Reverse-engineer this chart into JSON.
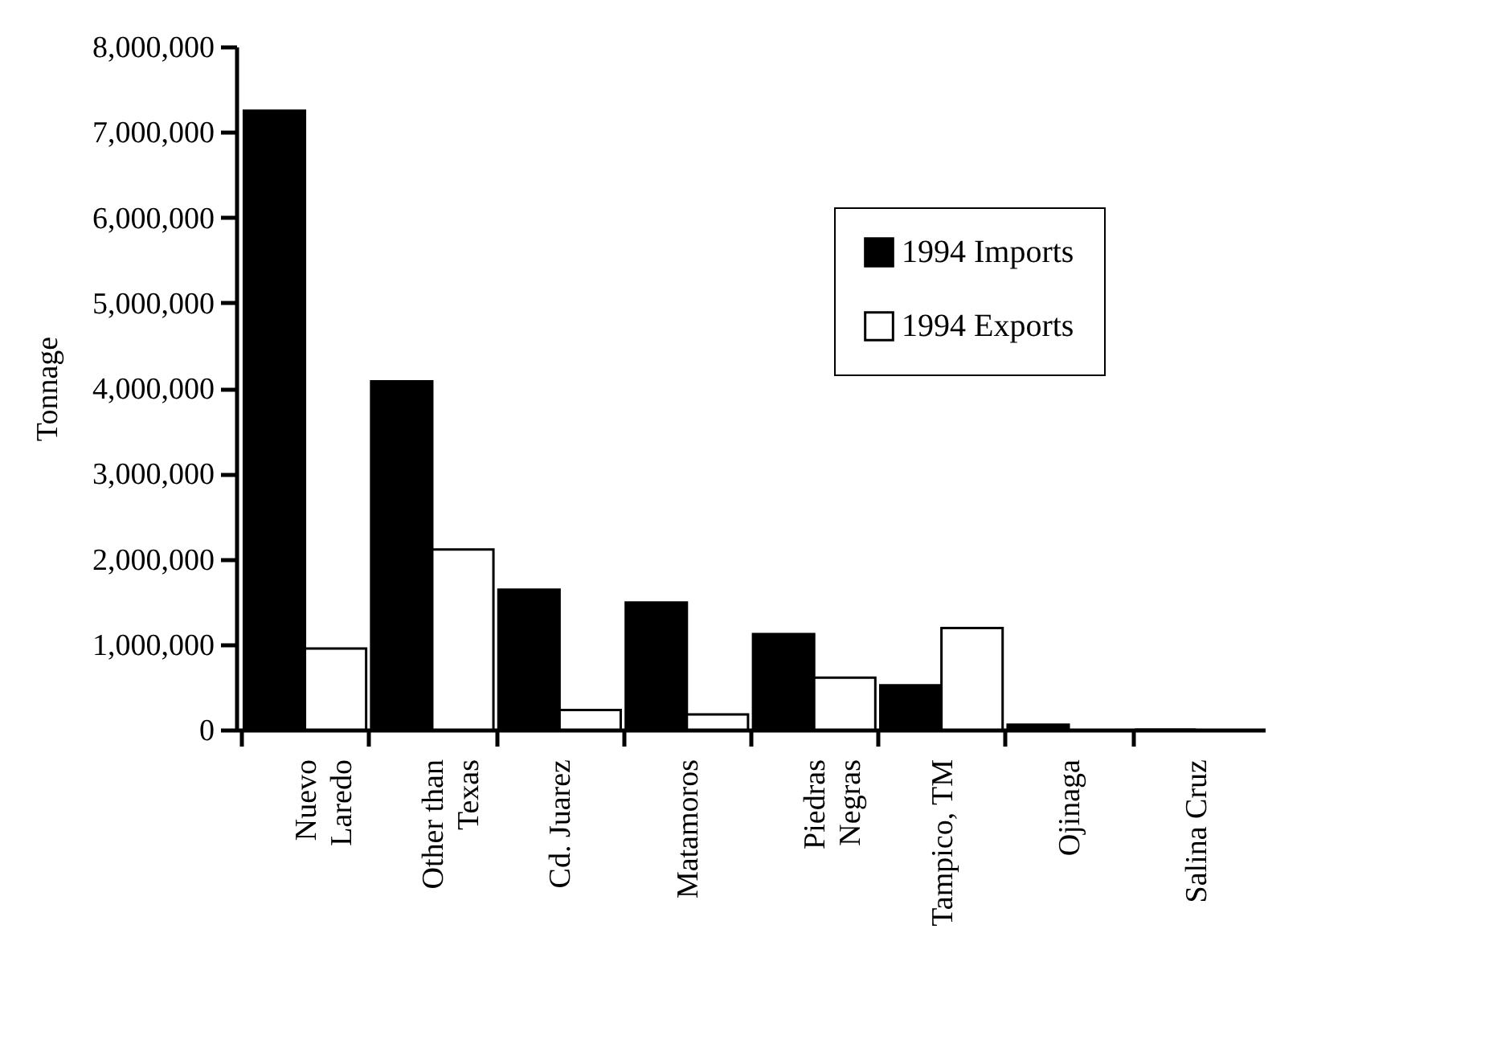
{
  "chart_data": {
    "type": "bar",
    "ylabel": "Tonnage",
    "categories": [
      "Nuevo\nLaredo",
      "Other than\nTexas",
      "Cd. Juarez",
      "Matamoros",
      "Piedras\nNegras",
      "Tampico, TM",
      "Ojinaga",
      "Salina Cruz"
    ],
    "series": [
      {
        "name": "1994 Imports",
        "color": "#000000",
        "values": [
          7250000,
          4080000,
          1640000,
          1490000,
          1120000,
          520000,
          60000,
          0
        ]
      },
      {
        "name": "1994 Exports",
        "color": "#ffffff",
        "values": [
          950000,
          2110000,
          230000,
          180000,
          610000,
          1190000,
          null,
          null
        ]
      }
    ],
    "ylim": [
      0,
      8000000
    ],
    "yticks": [
      0,
      {
        "value": 1000000,
        "label": "1,000,000"
      },
      {
        "value": 2000000,
        "label": "2,000,000"
      },
      {
        "value": 3000000,
        "label": "3,000,000"
      },
      {
        "value": 4000000,
        "label": "4,000,000"
      },
      {
        "value": 5000000,
        "label": "5,000,000"
      },
      {
        "value": 6000000,
        "label": "6,000,000"
      },
      {
        "value": 7000000,
        "label": "7,000,000"
      },
      {
        "value": 8000000,
        "label": "8,000,000"
      }
    ],
    "grid": false,
    "legend": "top right"
  }
}
